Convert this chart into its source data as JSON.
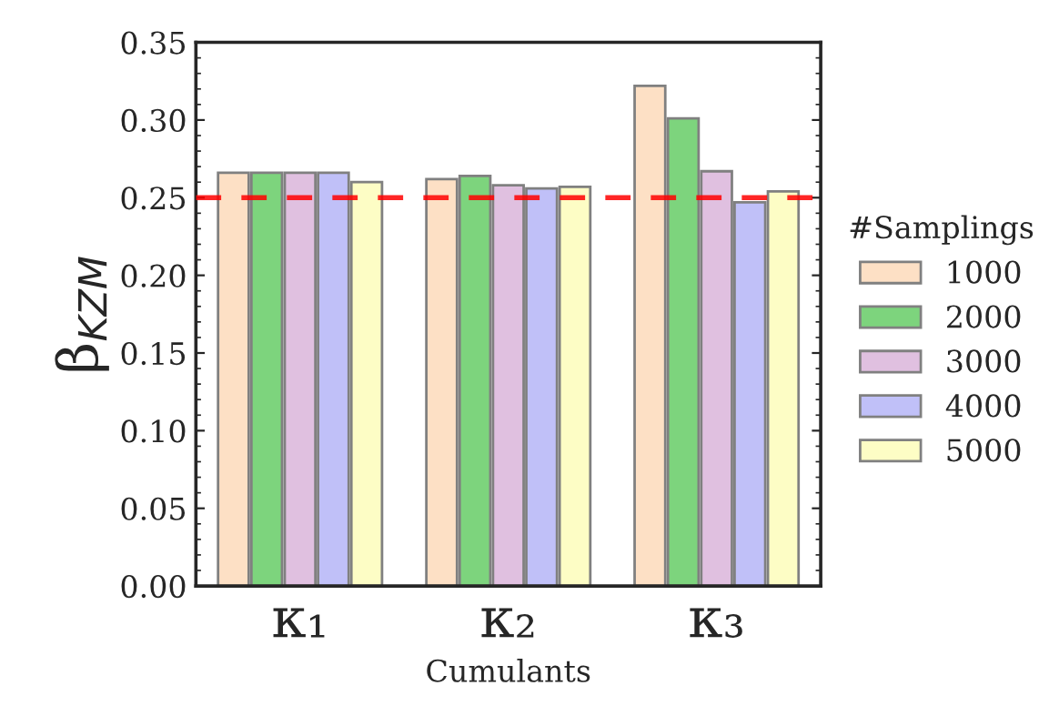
{
  "chart_data": {
    "type": "bar",
    "xlabel": "Cumulants",
    "ylabel": "β$_{KZM}$",
    "legend_title": "#Samplings",
    "categories": [
      "κ₁",
      "κ₂",
      "κ₃"
    ],
    "series": [
      {
        "name": "1000",
        "color": "#fde0c5",
        "values": [
          0.266,
          0.262,
          0.322
        ]
      },
      {
        "name": "2000",
        "color": "#7dd47d",
        "values": [
          0.266,
          0.264,
          0.301
        ]
      },
      {
        "name": "3000",
        "color": "#e0c0e0",
        "values": [
          0.266,
          0.258,
          0.267
        ]
      },
      {
        "name": "4000",
        "color": "#c0c0f8",
        "values": [
          0.266,
          0.256,
          0.247
        ]
      },
      {
        "name": "5000",
        "color": "#fdfdc5",
        "values": [
          0.26,
          0.257,
          0.254
        ]
      }
    ],
    "ylim": [
      0,
      0.35
    ],
    "yticks": [
      {
        "value": 0,
        "label": "0.00"
      },
      {
        "value": 0.05,
        "label": "0.05"
      },
      {
        "value": 0.1,
        "label": "0.10"
      },
      {
        "value": 0.15,
        "label": "0.15"
      },
      {
        "value": 0.2,
        "label": "0.20"
      },
      {
        "value": 0.25,
        "label": "0.25"
      },
      {
        "value": 0.3,
        "label": "0.30"
      },
      {
        "value": 0.35,
        "label": "0.35"
      }
    ],
    "ref_lines": [
      {
        "axis": "y",
        "value": 0.25,
        "color": "#ff0000",
        "line_style": "dashed"
      }
    ],
    "legend": "right",
    "grid": false
  }
}
